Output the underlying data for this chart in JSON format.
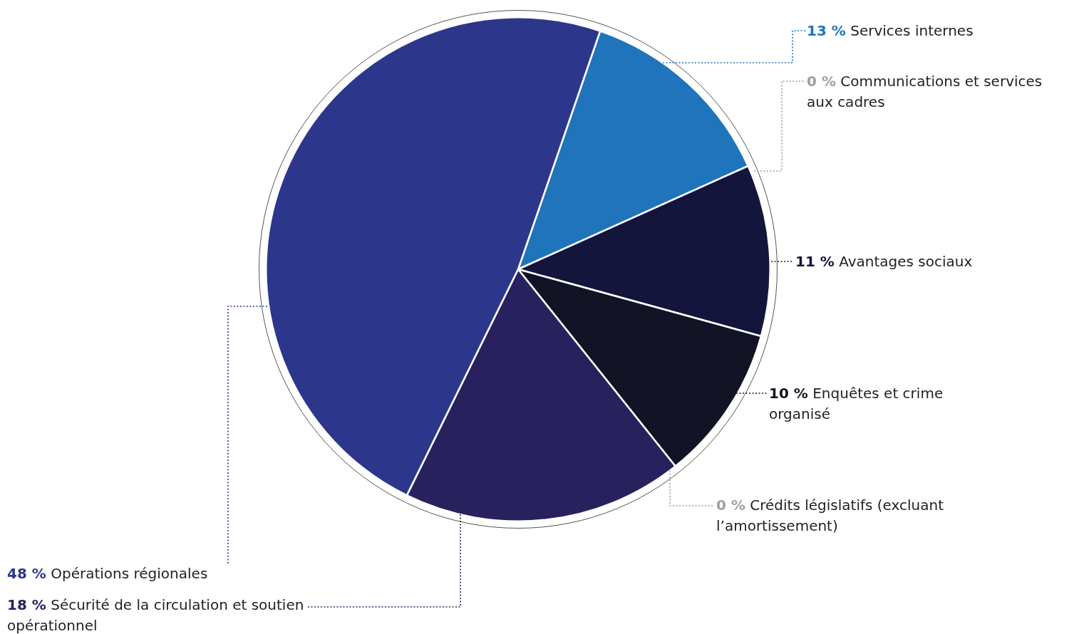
{
  "chart_data": {
    "type": "pie",
    "categories": [
      "Services internes",
      "Communications et services aux cadres",
      "Avantages sociaux",
      "Enquêtes et crime organisé",
      "Crédits législatifs (excluant l’amortissement)",
      "Sécurité de la circulation et soutien opérationnel",
      "Opérations régionales"
    ],
    "values": [
      13,
      0,
      11,
      10,
      0,
      18,
      48
    ],
    "colors": [
      "#1f74bb",
      "#a0a0a0",
      "#13153d",
      "#121425",
      "#a0a0a0",
      "#27215e",
      "#2c378c"
    ],
    "value_labels": [
      "13 %",
      "0 %",
      "11 %",
      "10 %",
      "0 %",
      "18 %",
      "48 %"
    ],
    "legend": false
  }
}
